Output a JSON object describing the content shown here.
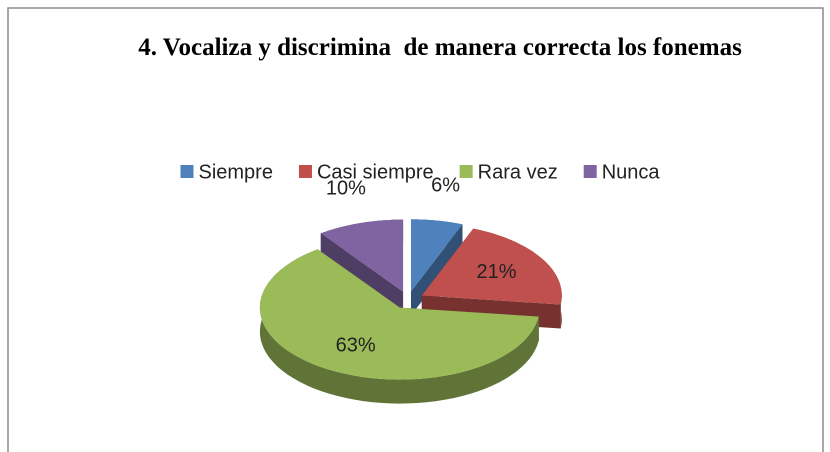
{
  "chart_data": {
    "type": "pie3d",
    "title": "4. Vocaliza y discrimina  de manera correcta los fonemas",
    "categories": [
      "Siempre",
      "Casi siempre",
      "Rara vez",
      "Nunca"
    ],
    "values": [
      6,
      21,
      63,
      10
    ],
    "value_labels": [
      "6%",
      "21%",
      "63%",
      "10%"
    ],
    "colors": [
      "#4f81bd",
      "#c0504d",
      "#9bbb59",
      "#8064a2"
    ],
    "legend": "top"
  }
}
